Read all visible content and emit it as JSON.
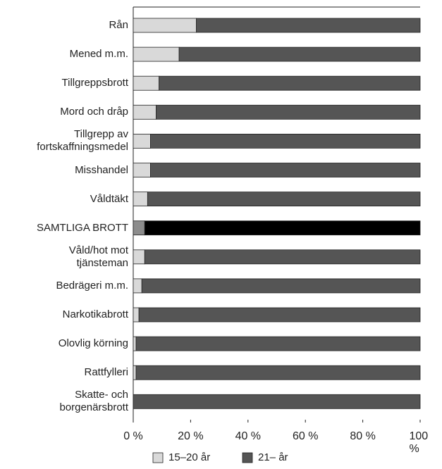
{
  "chart_data": {
    "type": "stacked_barh",
    "categories": [
      "Rån",
      "Mened m.m.",
      "Tillgreppsbrott",
      "Mord och dråp",
      "Tillgrepp av\nfortskaffningsmedel",
      "Misshandel",
      "Våldtäkt",
      "SAMTLIGA BROTT",
      "Våld/hot mot\ntjänsteman",
      "Bedrägeri m.m.",
      "Narkotikabrott",
      "Olovlig körning",
      "Rattfylleri",
      "Skatte- och\nborgenärsbrott"
    ],
    "series": [
      {
        "name": "15–20 år",
        "color": "#d9d9d9",
        "values": [
          22,
          16,
          9,
          8,
          6,
          6,
          5,
          4,
          4,
          3,
          2,
          1,
          1,
          0
        ]
      },
      {
        "name": "21– år",
        "color": "#555555",
        "values": [
          78,
          84,
          91,
          92,
          94,
          94,
          95,
          96,
          96,
          97,
          98,
          99,
          99,
          100
        ]
      }
    ],
    "highlight_index": 7,
    "highlight_colors": [
      "#8c8c8c",
      "#000000"
    ],
    "xlim": [
      0,
      100
    ],
    "xticks": [
      {
        "value": 0,
        "label": "0 %"
      },
      {
        "value": 20,
        "label": "20 %"
      },
      {
        "value": 40,
        "label": "40 %"
      },
      {
        "value": 60,
        "label": "60 %"
      },
      {
        "value": 80,
        "label": "80 %"
      },
      {
        "value": 100,
        "label": "100 %"
      }
    ],
    "legend": "bottom"
  }
}
